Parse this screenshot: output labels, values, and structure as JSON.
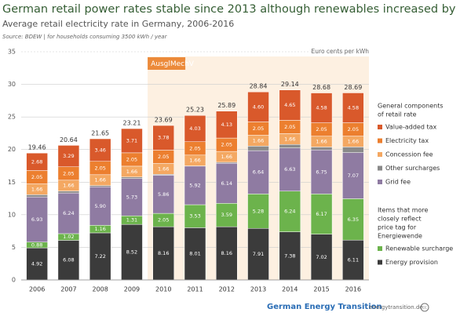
{
  "chart_data": {
    "type": "stacked-bar",
    "title": "German retail power rates stable since 2013 although renewables increased by a third",
    "subtitle": "Average retail electricity rate in Germany, 2006-2016",
    "source": "Source: BDEW | for households consuming 3500 kWh / year",
    "unit_label": "Euro cents per kWh",
    "annotation": {
      "text": "AusglMechV",
      "from": "2010"
    },
    "categories": [
      "2006",
      "2007",
      "2008",
      "2009",
      "2010",
      "2011",
      "2012",
      "2013",
      "2014",
      "2015",
      "2016"
    ],
    "series": [
      {
        "name": "Energy provision",
        "color": "#3b3b3b",
        "legend_group": 1,
        "values": [
          4.92,
          6.08,
          7.22,
          8.52,
          8.16,
          8.01,
          8.16,
          7.91,
          7.38,
          7.02,
          6.11
        ],
        "value_labels": [
          "4.92",
          "6.08",
          "7.22",
          "8.52",
          "8.16",
          "8.01",
          "8.16",
          "7.91",
          "7.38",
          "7.02",
          "6.11"
        ]
      },
      {
        "name": "Renewable surcharge",
        "color": "#6cb34c",
        "legend_group": 1,
        "values": [
          0.88,
          1.02,
          1.16,
          1.31,
          2.05,
          3.53,
          3.59,
          5.28,
          6.24,
          6.17,
          6.35
        ],
        "value_labels": [
          "0.88",
          "1.02",
          "1.16",
          "1.31",
          "2.05",
          "3.53",
          "3.59",
          "5.28",
          "6.24",
          "6.17",
          "6.35"
        ]
      },
      {
        "name": "Grid fee",
        "color": "#8f7ba2",
        "legend_group": 0,
        "values": [
          6.93,
          6.24,
          5.9,
          5.73,
          5.86,
          5.92,
          6.14,
          6.64,
          6.63,
          6.75,
          7.07
        ],
        "value_labels": [
          "6.93",
          "6.24",
          "5.90",
          "5.73",
          "5.86",
          "5.92",
          "6.14",
          "6.64",
          "6.63",
          "6.75",
          "7.07"
        ]
      },
      {
        "name": "Other surcharges",
        "color": "#8a8a8a",
        "legend_group": 0,
        "values": [
          0.34,
          0.3,
          0.2,
          0.23,
          0.13,
          0.03,
          0.16,
          0.7,
          0.53,
          0.45,
          0.87
        ]
      },
      {
        "name": "Concession fee",
        "color": "#f4a862",
        "legend_group": 0,
        "values": [
          1.66,
          1.66,
          1.66,
          1.66,
          1.66,
          1.66,
          1.66,
          1.66,
          1.66,
          1.66,
          1.66
        ],
        "value_labels": [
          "1.66",
          "1.66",
          "1.66",
          "1.66",
          "1.66",
          "1.66",
          "1.66",
          "1.66",
          "1.66",
          "1.66",
          "1.66"
        ]
      },
      {
        "name": "Electricity tax",
        "color": "#ec7f2f",
        "legend_group": 0,
        "values": [
          2.05,
          2.05,
          2.05,
          2.05,
          2.05,
          2.05,
          2.05,
          2.05,
          2.05,
          2.05,
          2.05
        ],
        "value_labels": [
          "2.05",
          "2.05",
          "2.05",
          "2.05",
          "2.05",
          "2.05",
          "2.05",
          "2.05",
          "2.05",
          "2.05",
          "2.05"
        ]
      },
      {
        "name": "Value-added tax",
        "color": "#d9592b",
        "legend_group": 0,
        "values": [
          2.68,
          3.29,
          3.46,
          3.71,
          3.78,
          4.03,
          4.13,
          4.6,
          4.65,
          4.58,
          4.58
        ],
        "value_labels": [
          "2.68",
          "3.29",
          "3.46",
          "3.71",
          "3.78",
          "4.03",
          "4.13",
          "4.60",
          "4.65",
          "4.58",
          "4.58"
        ]
      }
    ],
    "totals": [
      19.46,
      20.64,
      21.65,
      23.21,
      23.69,
      25.23,
      25.89,
      28.84,
      29.14,
      28.68,
      28.69
    ],
    "legend_groups": [
      {
        "title_lines": [
          "General components",
          "of retail rate"
        ]
      },
      {
        "title_lines": [
          "Items that more",
          "closely reflect",
          "price tag for",
          "Energiewende"
        ]
      }
    ],
    "ylim": [
      0,
      35
    ],
    "yticks": [
      0,
      5,
      10,
      15,
      20,
      25,
      30,
      35
    ],
    "grid": true,
    "footer": {
      "brand": "German Energy Transition",
      "site": "energytransition.de"
    }
  }
}
